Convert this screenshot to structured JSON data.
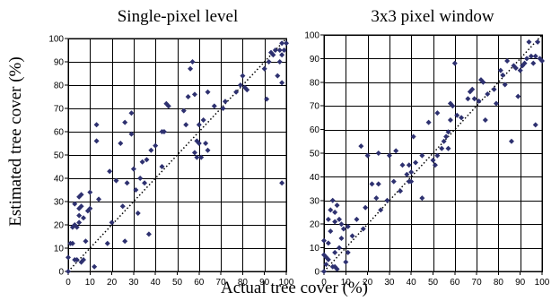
{
  "figure": {
    "ylabel": "Estimated tree cover (%)",
    "xlabel": "Actual tree cover (%)"
  },
  "chart_data": [
    {
      "type": "scatter",
      "title": "Single-pixel level",
      "xlabel": "Actual tree cover (%)",
      "ylabel": "Estimated tree cover (%)",
      "xlim": [
        0,
        100
      ],
      "ylim": [
        0,
        100
      ],
      "xticks": [
        0,
        10,
        20,
        30,
        40,
        50,
        60,
        70,
        80,
        90,
        100
      ],
      "yticks": [
        0,
        10,
        20,
        30,
        40,
        50,
        60,
        70,
        80,
        90,
        100
      ],
      "grid": true,
      "reference_line": "1:1 dotted",
      "marker_color": "#2e3170",
      "points": [
        [
          0,
          0
        ],
        [
          0,
          6
        ],
        [
          1,
          12
        ],
        [
          2,
          12
        ],
        [
          2,
          19
        ],
        [
          3,
          20
        ],
        [
          3,
          29
        ],
        [
          3,
          5
        ],
        [
          4,
          5
        ],
        [
          4,
          19
        ],
        [
          5,
          21
        ],
        [
          5,
          24
        ],
        [
          5,
          27
        ],
        [
          5,
          32
        ],
        [
          6,
          33
        ],
        [
          6,
          4
        ],
        [
          6,
          28
        ],
        [
          7,
          5
        ],
        [
          7,
          23
        ],
        [
          8,
          13
        ],
        [
          9,
          26
        ],
        [
          10,
          34
        ],
        [
          10,
          27
        ],
        [
          12,
          2
        ],
        [
          13,
          63
        ],
        [
          13,
          56
        ],
        [
          14,
          31
        ],
        [
          18,
          12
        ],
        [
          19,
          43
        ],
        [
          20,
          21
        ],
        [
          22,
          39
        ],
        [
          24,
          55
        ],
        [
          25,
          28
        ],
        [
          26,
          64
        ],
        [
          26,
          13
        ],
        [
          27,
          38
        ],
        [
          29,
          59
        ],
        [
          29,
          68
        ],
        [
          30,
          44
        ],
        [
          31,
          35
        ],
        [
          32,
          25
        ],
        [
          33,
          40
        ],
        [
          34,
          47
        ],
        [
          35,
          38
        ],
        [
          36,
          48
        ],
        [
          37,
          16
        ],
        [
          38,
          52
        ],
        [
          40,
          54
        ],
        [
          43,
          45
        ],
        [
          43,
          60
        ],
        [
          44,
          60
        ],
        [
          45,
          72
        ],
        [
          46,
          71
        ],
        [
          53,
          69
        ],
        [
          54,
          63
        ],
        [
          55,
          75
        ],
        [
          56,
          87
        ],
        [
          57,
          90
        ],
        [
          58,
          76
        ],
        [
          58,
          51
        ],
        [
          59,
          49
        ],
        [
          59,
          56
        ],
        [
          60,
          55
        ],
        [
          60,
          63
        ],
        [
          61,
          49
        ],
        [
          62,
          65
        ],
        [
          63,
          55
        ],
        [
          64,
          52
        ],
        [
          64,
          77
        ],
        [
          67,
          71
        ],
        [
          71,
          70
        ],
        [
          72,
          73
        ],
        [
          77,
          77
        ],
        [
          79,
          80
        ],
        [
          80,
          84
        ],
        [
          81,
          79
        ],
        [
          82,
          78
        ],
        [
          90,
          87
        ],
        [
          91,
          74
        ],
        [
          92,
          90
        ],
        [
          93,
          94
        ],
        [
          94,
          93
        ],
        [
          95,
          95
        ],
        [
          96,
          84
        ],
        [
          97,
          90
        ],
        [
          97,
          95
        ],
        [
          98,
          98
        ],
        [
          98,
          81
        ],
        [
          98,
          38
        ],
        [
          98,
          93
        ],
        [
          99,
          95
        ],
        [
          100,
          98
        ]
      ]
    },
    {
      "type": "scatter",
      "title": "3x3 pixel window",
      "xlabel": "Actual tree cover (%)",
      "ylabel": "Estimated tree cover (%)",
      "xlim": [
        0,
        100
      ],
      "ylim": [
        0,
        100
      ],
      "xticks": [
        0,
        10,
        20,
        30,
        40,
        50,
        60,
        70,
        80,
        90,
        100
      ],
      "yticks": [
        0,
        10,
        20,
        30,
        40,
        50,
        60,
        70,
        80,
        90,
        100
      ],
      "grid": true,
      "reference_line": "1:1 dotted",
      "marker_color": "#2e3170",
      "points": [
        [
          0,
          0
        ],
        [
          0,
          7
        ],
        [
          0,
          13
        ],
        [
          1,
          3
        ],
        [
          1,
          6
        ],
        [
          2,
          5
        ],
        [
          2,
          12
        ],
        [
          2,
          22
        ],
        [
          3,
          17
        ],
        [
          3,
          26
        ],
        [
          4,
          2
        ],
        [
          4,
          30
        ],
        [
          5,
          2
        ],
        [
          5,
          8
        ],
        [
          5,
          21
        ],
        [
          5,
          25
        ],
        [
          6,
          28
        ],
        [
          6,
          1
        ],
        [
          7,
          10
        ],
        [
          7,
          22
        ],
        [
          8,
          14
        ],
        [
          8,
          20
        ],
        [
          9,
          18
        ],
        [
          10,
          4
        ],
        [
          11,
          8
        ],
        [
          11,
          19
        ],
        [
          13,
          15
        ],
        [
          15,
          22
        ],
        [
          17,
          53
        ],
        [
          18,
          18
        ],
        [
          19,
          27
        ],
        [
          20,
          49
        ],
        [
          22,
          37
        ],
        [
          24,
          31
        ],
        [
          25,
          37
        ],
        [
          25,
          50
        ],
        [
          26,
          26
        ],
        [
          29,
          30
        ],
        [
          30,
          49
        ],
        [
          32,
          38
        ],
        [
          33,
          51
        ],
        [
          35,
          34
        ],
        [
          36,
          45
        ],
        [
          38,
          41
        ],
        [
          39,
          38
        ],
        [
          39,
          45
        ],
        [
          40,
          38
        ],
        [
          40,
          42
        ],
        [
          41,
          57
        ],
        [
          42,
          46
        ],
        [
          45,
          31
        ],
        [
          45,
          49
        ],
        [
          48,
          63
        ],
        [
          50,
          47
        ],
        [
          51,
          45
        ],
        [
          52,
          49
        ],
        [
          52,
          67
        ],
        [
          54,
          52
        ],
        [
          55,
          55
        ],
        [
          56,
          57
        ],
        [
          57,
          59
        ],
        [
          57,
          52
        ],
        [
          58,
          64
        ],
        [
          58,
          71
        ],
        [
          59,
          70
        ],
        [
          60,
          88
        ],
        [
          61,
          66
        ],
        [
          63,
          65
        ],
        [
          66,
          73
        ],
        [
          67,
          76
        ],
        [
          68,
          77
        ],
        [
          69,
          73
        ],
        [
          71,
          72
        ],
        [
          72,
          81
        ],
        [
          73,
          80
        ],
        [
          74,
          64
        ],
        [
          75,
          75
        ],
        [
          78,
          77
        ],
        [
          79,
          71
        ],
        [
          81,
          85
        ],
        [
          82,
          83
        ],
        [
          83,
          79
        ],
        [
          84,
          89
        ],
        [
          86,
          55
        ],
        [
          87,
          87
        ],
        [
          88,
          86
        ],
        [
          89,
          74
        ],
        [
          90,
          85
        ],
        [
          91,
          87
        ],
        [
          92,
          88
        ],
        [
          93,
          90
        ],
        [
          94,
          97
        ],
        [
          95,
          91
        ],
        [
          96,
          88
        ],
        [
          97,
          91
        ],
        [
          97,
          62
        ],
        [
          98,
          97
        ],
        [
          99,
          90
        ],
        [
          100,
          89
        ]
      ]
    }
  ]
}
